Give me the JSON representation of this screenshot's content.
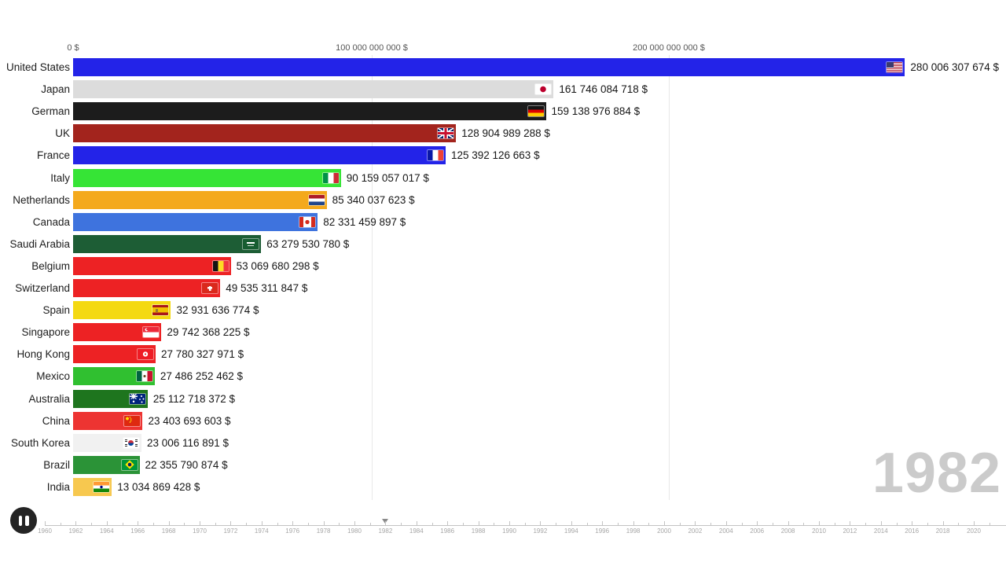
{
  "chart_data": {
    "type": "bar",
    "orientation": "horizontal",
    "title": "",
    "year": "1982",
    "unit": "$",
    "categories": [
      "United States",
      "Japan",
      "German",
      "UK",
      "France",
      "Italy",
      "Netherlands",
      "Canada",
      "Saudi Arabia",
      "Belgium",
      "Switzerland",
      "Spain",
      "Singapore",
      "Hong Kong",
      "Mexico",
      "Australia",
      "China",
      "South Korea",
      "Brazil",
      "India"
    ],
    "values": [
      280006307674,
      161746084718,
      159138976884,
      128904989288,
      125392126663,
      90159057017,
      85340037623,
      82331459897,
      63279530780,
      53069680298,
      49535311847,
      32931636774,
      29742368225,
      27780327971,
      27486252462,
      25112718372,
      23403693603,
      23006116891,
      22355790874,
      13034869428
    ],
    "value_labels": [
      "280 006 307 674 $",
      "161 746 084 718 $",
      "159 138 976 884 $",
      "128 904 989 288 $",
      "125 392 126 663 $",
      "90 159 057 017 $",
      "85 340 037 623 $",
      "82 331 459 897 $",
      "63 279 530 780 $",
      "53 069 680 298 $",
      "49 535 311 847 $",
      "32 931 636 774 $",
      "29 742 368 225 $",
      "27 780 327 971 $",
      "27 486 252 462 $",
      "25 112 718 372 $",
      "23 403 693 603 $",
      "23 006 116 891 $",
      "22 355 790 874 $",
      "13 034 869 428 $"
    ],
    "bar_colors": [
      "#2323e8",
      "#dcdcdc",
      "#1c1c1c",
      "#a3241d",
      "#2323e8",
      "#36e436",
      "#f4a91c",
      "#3e73de",
      "#1d5d35",
      "#ed2224",
      "#ed2224",
      "#f4d912",
      "#ed2224",
      "#ed2224",
      "#30c030",
      "#1e751e",
      "#ed3432",
      "#f1f1f1",
      "#2b9337",
      "#f7c84f"
    ],
    "flags": [
      "us",
      "jp",
      "de",
      "uk",
      "fr",
      "it",
      "nl",
      "ca",
      "sa",
      "be",
      "ch",
      "es",
      "sg",
      "hk",
      "mx",
      "au",
      "cn",
      "kr",
      "br",
      "in"
    ],
    "x_axis": {
      "tick_labels": [
        "0 $",
        "100 000 000 000 $",
        "200 000 000 000 $"
      ],
      "tick_values": [
        0,
        100000000000,
        200000000000
      ],
      "range": [
        0,
        314000000000
      ],
      "grid": true
    },
    "legend": "none"
  },
  "year_display": {
    "text": "1982"
  },
  "player": {
    "icon": "pause"
  },
  "timeline": {
    "start_year": 1960,
    "end_year": 2021,
    "current_year": 1982,
    "label_step": 2,
    "labels": [
      "1960",
      "1962",
      "1964",
      "1966",
      "1968",
      "1970",
      "1972",
      "1974",
      "1976",
      "1978",
      "1980",
      "1982",
      "1984",
      "1986",
      "1988",
      "1990",
      "1992",
      "1994",
      "1996",
      "1998",
      "2000",
      "2002",
      "2004",
      "2006",
      "2008",
      "2010",
      "2012",
      "2014",
      "2016",
      "2018",
      "2020"
    ]
  }
}
